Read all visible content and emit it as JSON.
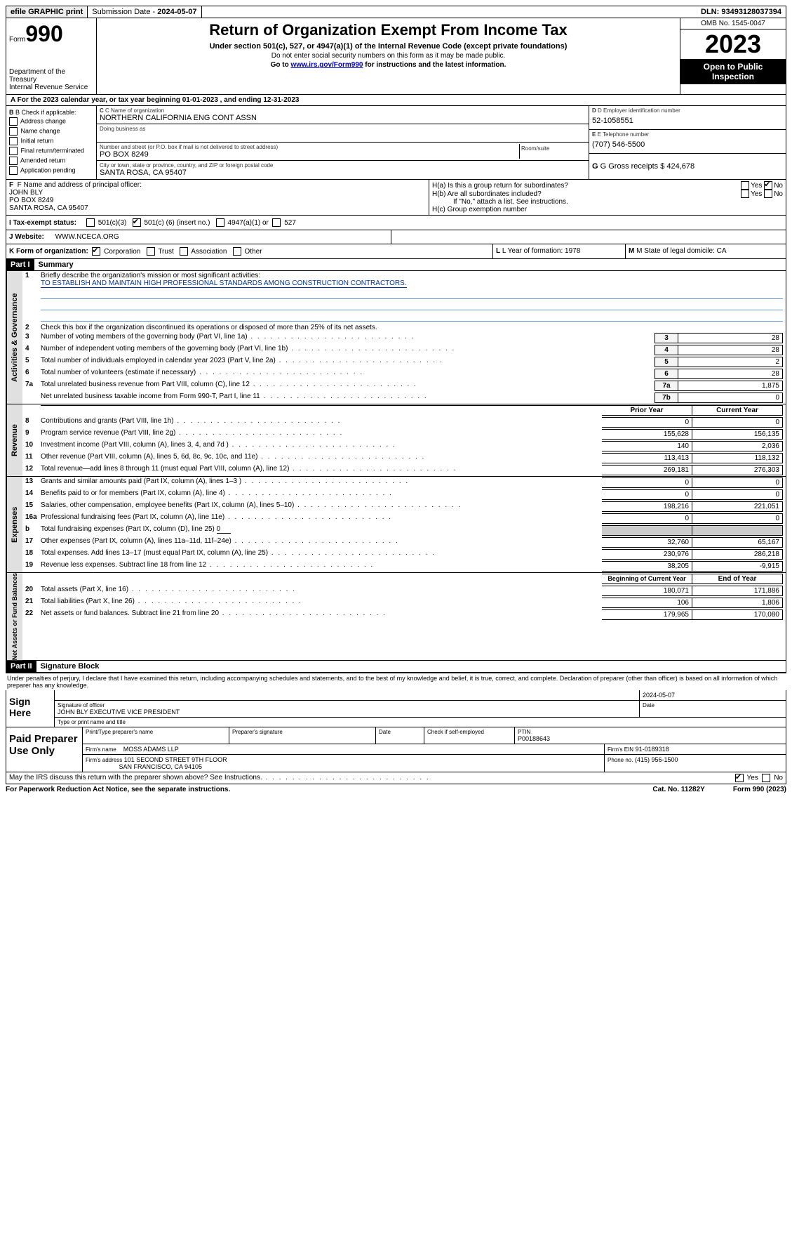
{
  "topbar": {
    "efile": "efile GRAPHIC print",
    "submission_label": "Submission Date - ",
    "submission_date": "2024-05-07",
    "dln_label": "DLN: ",
    "dln": "93493128037394"
  },
  "header": {
    "form_word": "Form",
    "form_num": "990",
    "dept": "Department of the Treasury\nInternal Revenue Service",
    "title": "Return of Organization Exempt From Income Tax",
    "sub": "Under section 501(c), 527, or 4947(a)(1) of the Internal Revenue Code (except private foundations)",
    "note1": "Do not enter social security numbers on this form as it may be made public.",
    "note2_pre": "Go to ",
    "note2_link": "www.irs.gov/Form990",
    "note2_post": " for instructions and the latest information.",
    "omb": "OMB No. 1545-0047",
    "year": "2023",
    "otp": "Open to Public Inspection"
  },
  "row_a": "A For the 2023 calendar year, or tax year beginning 01-01-2023   , and ending 12-31-2023",
  "section_b": {
    "title": "B Check if applicable:",
    "opts": [
      "Address change",
      "Name change",
      "Initial return",
      "Final return/terminated",
      "Amended return",
      "Application pending"
    ]
  },
  "section_c": {
    "name_label": "C Name of organization",
    "name": "NORTHERN CALIFORNIA ENG CONT ASSN",
    "dba_label": "Doing business as",
    "dba": "",
    "street_label": "Number and street (or P.O. box if mail is not delivered to street address)",
    "room_label": "Room/suite",
    "street": "PO BOX 8249",
    "city_label": "City or town, state or province, country, and ZIP or foreign postal code",
    "city": "SANTA ROSA, CA  95407"
  },
  "section_d": {
    "ein_label": "D Employer identification number",
    "ein": "52-1058551",
    "phone_label": "E Telephone number",
    "phone": "(707) 546-5500",
    "gross_label": "G Gross receipts $ ",
    "gross": "424,678"
  },
  "section_f": {
    "label": "F  Name and address of principal officer:",
    "name": "JOHN BLY",
    "street": "PO BOX 8249",
    "city": "SANTA ROSA, CA  95407"
  },
  "section_h": {
    "ha": "H(a)  Is this a group return for subordinates?",
    "hb": "H(b)  Are all subordinates included?",
    "hb_note": "If \"No,\" attach a list. See instructions.",
    "hc": "H(c)  Group exemption number",
    "yes": "Yes",
    "no": "No",
    "ha_answer": "no"
  },
  "tax_exempt": {
    "label": "I  Tax-exempt status:",
    "c3": "501(c)(3)",
    "c_other_pre": "501(c) ( ",
    "c_other_num": "6",
    "c_other_post": " ) (insert no.)",
    "c_other_checked": true,
    "a4947": "4947(a)(1) or",
    "s527": "527"
  },
  "website": {
    "label": "J  Website:",
    "value": "WWW.NCECA.ORG"
  },
  "row_k": {
    "label": "K Form of organization:",
    "opts": [
      "Corporation",
      "Trust",
      "Association",
      "Other"
    ],
    "checked": 0,
    "l_label": "L Year of formation: ",
    "l_val": "1978",
    "m_label": "M State of legal domicile: ",
    "m_val": "CA"
  },
  "parts": {
    "p1": "Part I",
    "p1_title": "Summary",
    "p2": "Part II",
    "p2_title": "Signature Block"
  },
  "sidebars": {
    "s1": "Activities & Governance",
    "s2": "Revenue",
    "s3": "Expenses",
    "s4": "Net Assets or Fund Balances"
  },
  "summary": {
    "l1_label": "Briefly describe the organization's mission or most significant activities:",
    "l1_val": "TO ESTABLISH AND MAINTAIN HIGH PROFESSIONAL STANDARDS AMONG CONSTRUCTION CONTRACTORS.",
    "l2": "Check this box       if the organization discontinued its operations or disposed of more than 25% of its net assets.",
    "lines_single": [
      {
        "n": "3",
        "desc": "Number of voting members of the governing body (Part VI, line 1a)",
        "box": "3",
        "val": "28"
      },
      {
        "n": "4",
        "desc": "Number of independent voting members of the governing body (Part VI, line 1b)",
        "box": "4",
        "val": "28"
      },
      {
        "n": "5",
        "desc": "Total number of individuals employed in calendar year 2023 (Part V, line 2a)",
        "box": "5",
        "val": "2"
      },
      {
        "n": "6",
        "desc": "Total number of volunteers (estimate if necessary)",
        "box": "6",
        "val": "28"
      },
      {
        "n": "7a",
        "desc": "Total unrelated business revenue from Part VIII, column (C), line 12",
        "box": "7a",
        "val": "1,875"
      },
      {
        "n": "",
        "desc": "Net unrelated business taxable income from Form 990-T, Part I, line 11",
        "box": "7b",
        "val": "0"
      }
    ],
    "col_prior": "Prior Year",
    "col_current": "Current Year",
    "revenue": [
      {
        "n": "8",
        "desc": "Contributions and grants (Part VIII, line 1h)",
        "prior": "0",
        "curr": "0"
      },
      {
        "n": "9",
        "desc": "Program service revenue (Part VIII, line 2g)",
        "prior": "155,628",
        "curr": "156,135"
      },
      {
        "n": "10",
        "desc": "Investment income (Part VIII, column (A), lines 3, 4, and 7d )",
        "prior": "140",
        "curr": "2,036"
      },
      {
        "n": "11",
        "desc": "Other revenue (Part VIII, column (A), lines 5, 6d, 8c, 9c, 10c, and 11e)",
        "prior": "113,413",
        "curr": "118,132"
      },
      {
        "n": "12",
        "desc": "Total revenue—add lines 8 through 11 (must equal Part VIII, column (A), line 12)",
        "prior": "269,181",
        "curr": "276,303"
      }
    ],
    "expenses": [
      {
        "n": "13",
        "desc": "Grants and similar amounts paid (Part IX, column (A), lines 1–3 )",
        "prior": "0",
        "curr": "0"
      },
      {
        "n": "14",
        "desc": "Benefits paid to or for members (Part IX, column (A), line 4)",
        "prior": "0",
        "curr": "0"
      },
      {
        "n": "15",
        "desc": "Salaries, other compensation, employee benefits (Part IX, column (A), lines 5–10)",
        "prior": "198,216",
        "curr": "221,051"
      },
      {
        "n": "16a",
        "desc": "Professional fundraising fees (Part IX, column (A), line 11e)",
        "prior": "0",
        "curr": "0"
      }
    ],
    "l16b": "Total fundraising expenses (Part IX, column (D), line 25) ",
    "l16b_val": "0",
    "expenses2": [
      {
        "n": "17",
        "desc": "Other expenses (Part IX, column (A), lines 11a–11d, 11f–24e)",
        "prior": "32,760",
        "curr": "65,167"
      },
      {
        "n": "18",
        "desc": "Total expenses. Add lines 13–17 (must equal Part IX, column (A), line 25)",
        "prior": "230,976",
        "curr": "286,218"
      },
      {
        "n": "19",
        "desc": "Revenue less expenses. Subtract line 18 from line 12",
        "prior": "38,205",
        "curr": "-9,915"
      }
    ],
    "col_begin": "Beginning of Current Year",
    "col_end": "End of Year",
    "net": [
      {
        "n": "20",
        "desc": "Total assets (Part X, line 16)",
        "prior": "180,071",
        "curr": "171,886"
      },
      {
        "n": "21",
        "desc": "Total liabilities (Part X, line 26)",
        "prior": "106",
        "curr": "1,806"
      },
      {
        "n": "22",
        "desc": "Net assets or fund balances. Subtract line 21 from line 20",
        "prior": "179,965",
        "curr": "170,080"
      }
    ]
  },
  "penalties": "Under penalties of perjury, I declare that I have examined this return, including accompanying schedules and statements, and to the best of my knowledge and belief, it is true, correct, and complete. Declaration of preparer (other than officer) is based on all information of which preparer has any knowledge.",
  "sign": {
    "here": "Sign Here",
    "sig_label": "Signature of officer",
    "sig_name": "JOHN BLY  EXECUTIVE VICE PRESIDENT",
    "type_label": "Type or print name and title",
    "date_label": "Date",
    "date": "2024-05-07"
  },
  "preparer": {
    "label": "Paid Preparer Use Only",
    "name_label": "Print/Type preparer's name",
    "sig_label": "Preparer's signature",
    "date_label": "Date",
    "self_emp": "Check        if self-employed",
    "ptin_label": "PTIN",
    "ptin": "P00188643",
    "firm_label": "Firm's name",
    "firm": "MOSS ADAMS LLP",
    "firm_ein_label": "Firm's EIN",
    "firm_ein": "91-0189318",
    "addr_label": "Firm's address",
    "addr1": "101 SECOND STREET 9TH FLOOR",
    "addr2": "SAN FRANCISCO, CA  94105",
    "phone_label": "Phone no.",
    "phone": "(415) 956-1500"
  },
  "discuss": {
    "text": "May the IRS discuss this return with the preparer shown above? See Instructions.",
    "yes": "Yes",
    "no": "No",
    "answer": "yes"
  },
  "footer": {
    "pra": "For Paperwork Reduction Act Notice, see the separate instructions.",
    "cat": "Cat. No. 11282Y",
    "form": "Form 990 (2023)"
  }
}
